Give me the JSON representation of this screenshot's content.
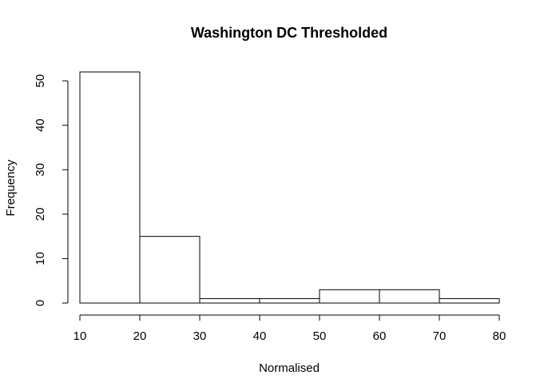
{
  "chart_data": {
    "type": "bar",
    "title": "Washington DC Thresholded",
    "xlabel": "Normalised",
    "ylabel": "Frequency",
    "bins": [
      {
        "from": 10,
        "to": 20,
        "value": 52
      },
      {
        "from": 20,
        "to": 30,
        "value": 15
      },
      {
        "from": 30,
        "to": 40,
        "value": 1
      },
      {
        "from": 40,
        "to": 50,
        "value": 1
      },
      {
        "from": 50,
        "to": 60,
        "value": 3
      },
      {
        "from": 60,
        "to": 70,
        "value": 3
      },
      {
        "from": 70,
        "to": 80,
        "value": 1
      }
    ],
    "xticks": [
      10,
      20,
      30,
      40,
      50,
      60,
      70,
      80
    ],
    "yticks": [
      0,
      10,
      20,
      30,
      40,
      50
    ],
    "xlim": [
      10,
      80
    ],
    "ylim": [
      0,
      52
    ],
    "grid": false,
    "bar_fill": "#ffffff",
    "bar_stroke": "#000000"
  }
}
